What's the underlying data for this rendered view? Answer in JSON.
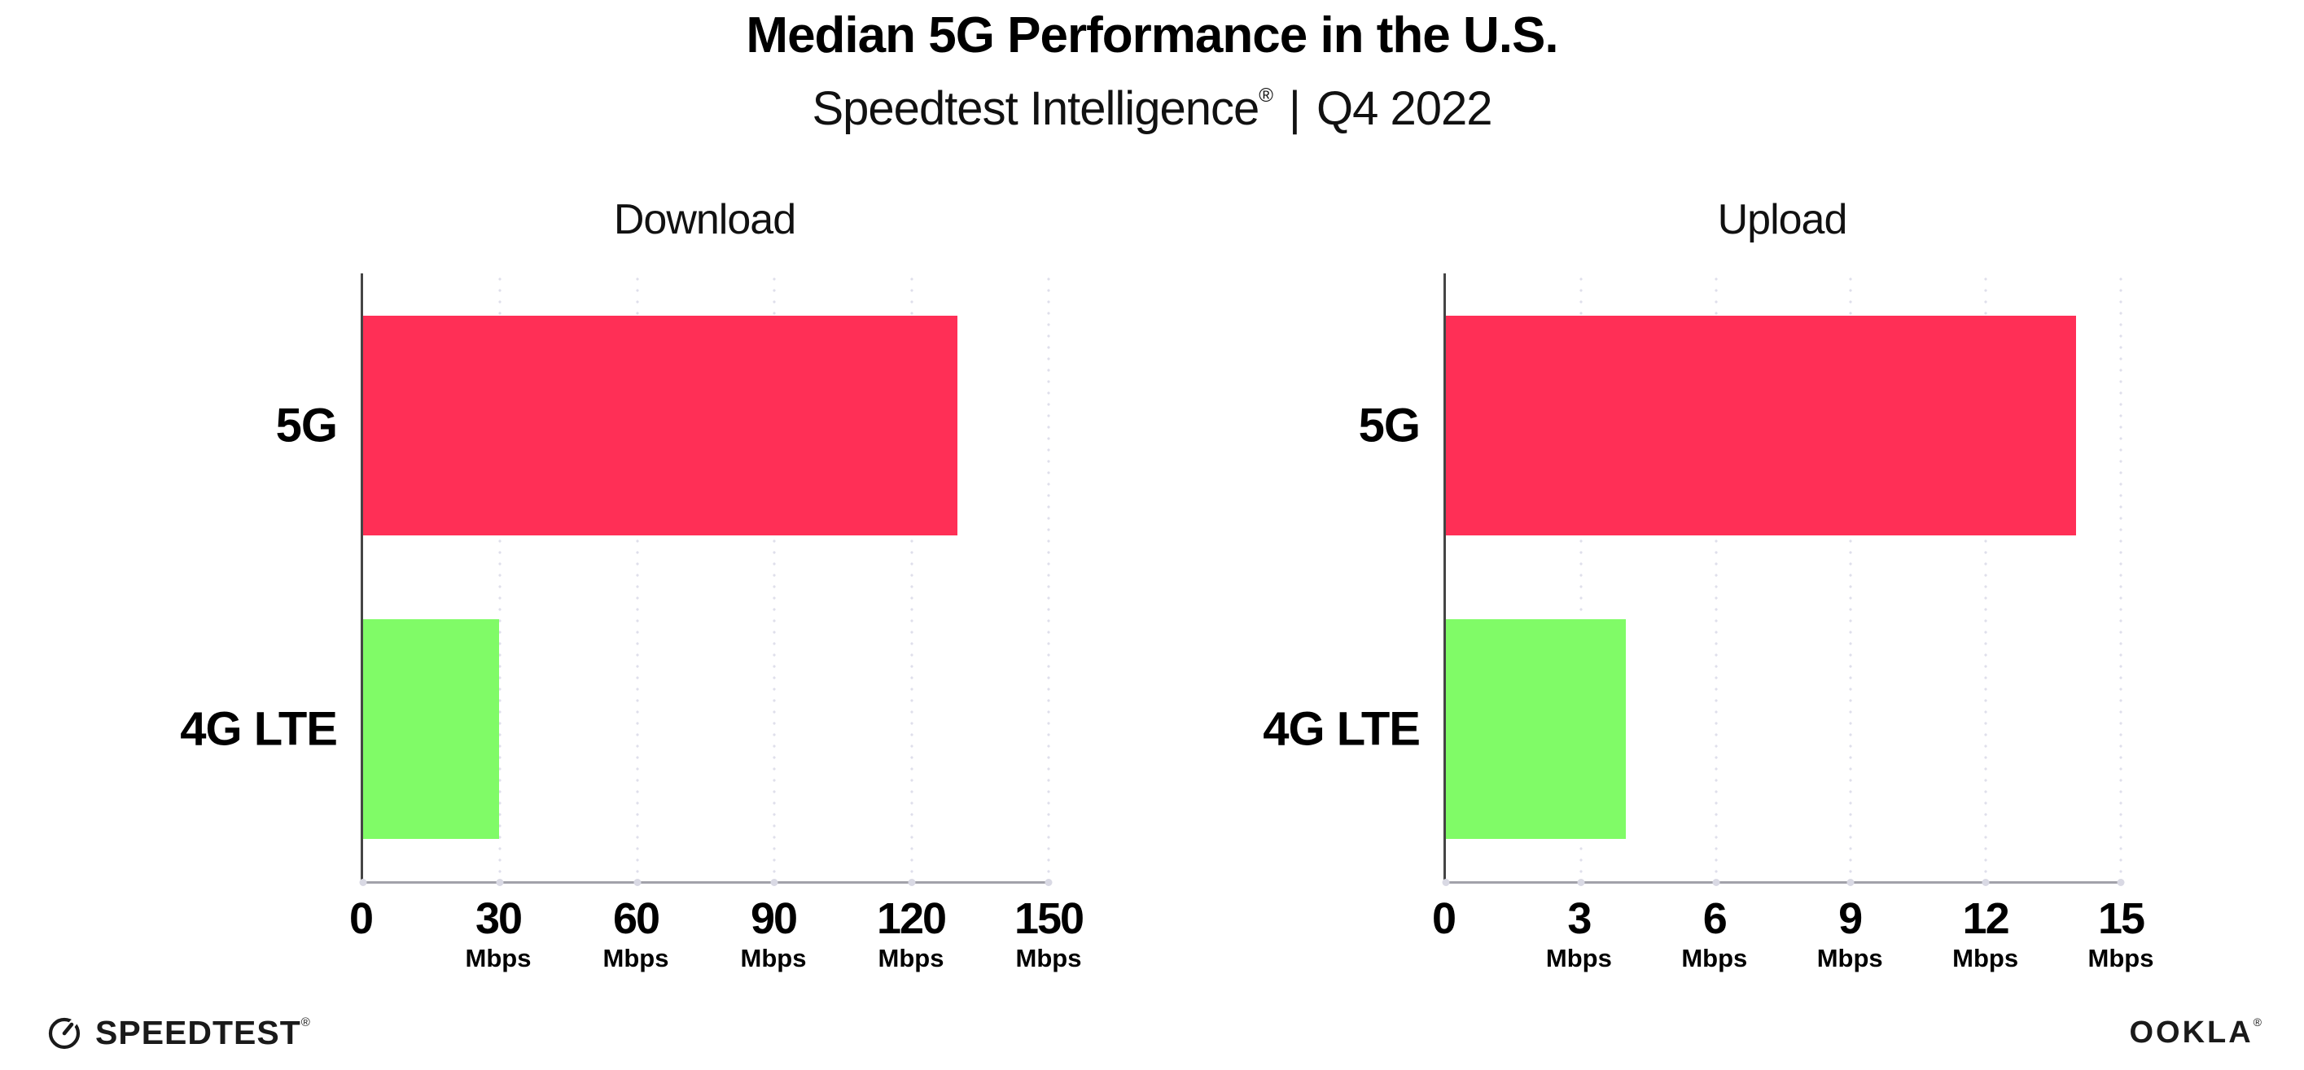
{
  "header": {
    "title": "Median 5G Performance in the U.S.",
    "subtitle_brand": "Speedtest Intelligence",
    "subtitle_reg_mark": "®",
    "subtitle_separator": "|",
    "subtitle_period": "Q4 2022"
  },
  "chart_data": [
    {
      "type": "bar",
      "orientation": "horizontal",
      "title": "Download",
      "categories": [
        "5G",
        "4G LTE"
      ],
      "values": [
        130,
        29.7
      ],
      "unit_label": "Mbps",
      "xlim": [
        0,
        150
      ],
      "xticks": [
        0,
        30,
        60,
        90,
        120,
        150
      ],
      "grid": "vertical-dotted",
      "legend": "none"
    },
    {
      "type": "bar",
      "orientation": "horizontal",
      "title": "Upload",
      "categories": [
        "5G",
        "4G LTE"
      ],
      "values": [
        14,
        4
      ],
      "unit_label": "Mbps",
      "xlim": [
        0,
        15
      ],
      "xticks": [
        0,
        3,
        6,
        9,
        12,
        15
      ],
      "grid": "vertical-dotted",
      "legend": "none"
    }
  ],
  "colors": {
    "series": [
      "#FF2F56",
      "#80FB67"
    ],
    "gridline": "#DFDFEB",
    "x_axis": "#A2A2AA",
    "y_axis": "#454545",
    "text": "#000000"
  },
  "footer": {
    "speedtest_text": "SPEEDTEST",
    "speedtest_mark": "®",
    "ookla_text": "OOKLA",
    "ookla_mark": "®"
  }
}
